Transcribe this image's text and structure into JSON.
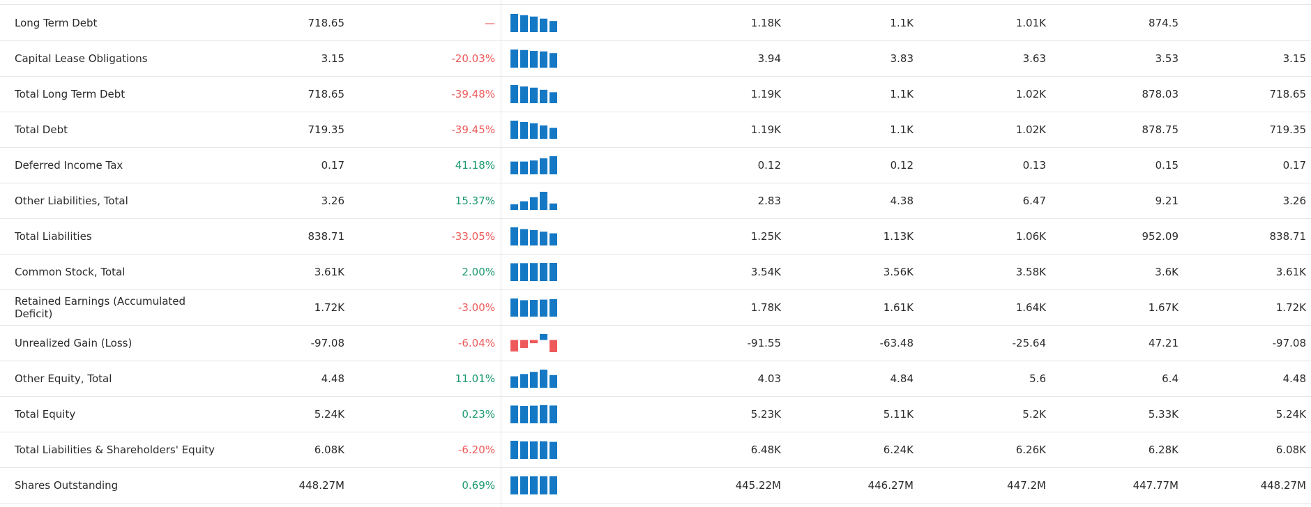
{
  "colors": {
    "bar_positive": "#1478c4",
    "bar_negative": "#ee5a5a",
    "change_positive": "#1a9a6c",
    "change_negative": "#ee5a5a"
  },
  "rows": [
    {
      "label": "Long Term Debt",
      "value": "718.65",
      "change": "—",
      "trend": "neutral",
      "history": [
        "1.18K",
        "1.1K",
        "1.01K",
        "874.5",
        ""
      ],
      "spark": [
        1180,
        1100,
        1010,
        874.5,
        718.65
      ]
    },
    {
      "label": "Capital Lease Obligations",
      "value": "3.15",
      "change": "-20.03%",
      "trend": "negative",
      "history": [
        "3.94",
        "3.83",
        "3.63",
        "3.53",
        "3.15"
      ],
      "spark": [
        3.94,
        3.83,
        3.63,
        3.53,
        3.15
      ]
    },
    {
      "label": "Total Long Term Debt",
      "value": "718.65",
      "change": "-39.48%",
      "trend": "negative",
      "history": [
        "1.19K",
        "1.1K",
        "1.02K",
        "878.03",
        "718.65"
      ],
      "spark": [
        1190,
        1100,
        1020,
        878.03,
        718.65
      ]
    },
    {
      "label": "Total Debt",
      "value": "719.35",
      "change": "-39.45%",
      "trend": "negative",
      "history": [
        "1.19K",
        "1.1K",
        "1.02K",
        "878.75",
        "719.35"
      ],
      "spark": [
        1190,
        1100,
        1020,
        878.75,
        719.35
      ]
    },
    {
      "label": "Deferred Income Tax",
      "value": "0.17",
      "change": "41.18%",
      "trend": "positive",
      "history": [
        "0.12",
        "0.12",
        "0.13",
        "0.15",
        "0.17"
      ],
      "spark": [
        0.12,
        0.12,
        0.13,
        0.15,
        0.17
      ]
    },
    {
      "label": "Other Liabilities, Total",
      "value": "3.26",
      "change": "15.37%",
      "trend": "positive",
      "history": [
        "2.83",
        "4.38",
        "6.47",
        "9.21",
        "3.26"
      ],
      "spark": [
        2.83,
        4.38,
        6.47,
        9.21,
        3.26
      ]
    },
    {
      "label": "Total Liabilities",
      "value": "838.71",
      "change": "-33.05%",
      "trend": "negative",
      "history": [
        "1.25K",
        "1.13K",
        "1.06K",
        "952.09",
        "838.71"
      ],
      "spark": [
        1250,
        1130,
        1060,
        952.09,
        838.71
      ]
    },
    {
      "label": "Common Stock, Total",
      "value": "3.61K",
      "change": "2.00%",
      "trend": "positive",
      "history": [
        "3.54K",
        "3.56K",
        "3.58K",
        "3.6K",
        "3.61K"
      ],
      "spark": [
        3540,
        3560,
        3580,
        3600,
        3610
      ]
    },
    {
      "label": "Retained Earnings (Accumulated Deficit)",
      "value": "1.72K",
      "change": "-3.00%",
      "trend": "negative",
      "history": [
        "1.78K",
        "1.61K",
        "1.64K",
        "1.67K",
        "1.72K"
      ],
      "spark": [
        1780,
        1610,
        1640,
        1670,
        1720
      ]
    },
    {
      "label": "Unrealized Gain (Loss)",
      "value": "-97.08",
      "change": "-6.04%",
      "trend": "negative",
      "history": [
        "-91.55",
        "-63.48",
        "-25.64",
        "47.21",
        "-97.08"
      ],
      "spark": [
        -91.55,
        -63.48,
        -25.64,
        47.21,
        -97.08
      ]
    },
    {
      "label": "Other Equity, Total",
      "value": "4.48",
      "change": "11.01%",
      "trend": "positive",
      "history": [
        "4.03",
        "4.84",
        "5.6",
        "6.4",
        "4.48"
      ],
      "spark": [
        4.03,
        4.84,
        5.6,
        6.4,
        4.48
      ]
    },
    {
      "label": "Total Equity",
      "value": "5.24K",
      "change": "0.23%",
      "trend": "positive",
      "history": [
        "5.23K",
        "5.11K",
        "5.2K",
        "5.33K",
        "5.24K"
      ],
      "spark": [
        5230,
        5110,
        5200,
        5330,
        5240
      ]
    },
    {
      "label": "Total Liabilities & Shareholders' Equity",
      "value": "6.08K",
      "change": "-6.20%",
      "trend": "negative",
      "history": [
        "6.48K",
        "6.24K",
        "6.26K",
        "6.28K",
        "6.08K"
      ],
      "spark": [
        6480,
        6240,
        6260,
        6280,
        6080
      ]
    },
    {
      "label": "Shares Outstanding",
      "value": "448.27M",
      "change": "0.69%",
      "trend": "positive",
      "history": [
        "445.22M",
        "446.27M",
        "447.2M",
        "447.77M",
        "448.27M"
      ],
      "spark": [
        445.22,
        446.27,
        447.2,
        447.77,
        448.27
      ]
    }
  ]
}
